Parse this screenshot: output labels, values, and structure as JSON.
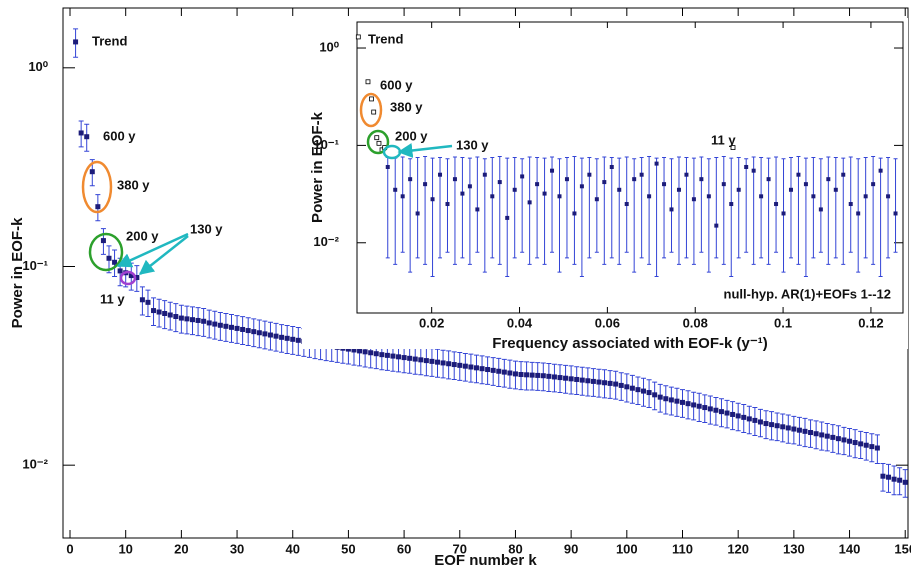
{
  "chart_data": [
    {
      "type": "errorbar",
      "x_label": "EOF number k",
      "y_label": "Power in EOF-k",
      "log_y": true,
      "color": "#1c1c7a",
      "error_color": "#3344d6",
      "xlim": [
        -1.26,
        150.5
      ],
      "xticks": [
        0,
        10,
        20,
        30,
        40,
        50,
        60,
        70,
        80,
        90,
        100,
        110,
        120,
        130,
        140,
        150
      ],
      "ylim": [
        0.0043,
        2
      ],
      "yticks": [
        {
          "value": 0.01,
          "label": "10⁻²"
        },
        {
          "value": 0.1,
          "label": "10⁻¹"
        },
        {
          "value": 1,
          "label": "10⁰"
        }
      ],
      "x": [
        1,
        2,
        3,
        4,
        5,
        6,
        7,
        8,
        9,
        10,
        11,
        12,
        13,
        14,
        15,
        16,
        17,
        18,
        19,
        20,
        21,
        22,
        23,
        24,
        25,
        26,
        27,
        28,
        29,
        30,
        31,
        32,
        33,
        34,
        35,
        36,
        37,
        38,
        39,
        40,
        41,
        42,
        43,
        44,
        45,
        46,
        47,
        48,
        49,
        50,
        51,
        52,
        53,
        54,
        55,
        56,
        57,
        58,
        59,
        60,
        61,
        62,
        63,
        64,
        65,
        66,
        67,
        68,
        69,
        70,
        71,
        72,
        73,
        74,
        75,
        76,
        77,
        78,
        79,
        80,
        81,
        82,
        83,
        84,
        85,
        86,
        87,
        88,
        89,
        90,
        91,
        92,
        93,
        94,
        95,
        96,
        97,
        98,
        99,
        100,
        101,
        102,
        103,
        104,
        105,
        106,
        107,
        108,
        109,
        110,
        111,
        112,
        113,
        114,
        115,
        116,
        117,
        118,
        119,
        120,
        121,
        122,
        123,
        124,
        125,
        126,
        127,
        128,
        129,
        130,
        131,
        132,
        133,
        134,
        135,
        136,
        137,
        138,
        139,
        140,
        141,
        142,
        143,
        144,
        145,
        146,
        147,
        148,
        149,
        150
      ],
      "values": [
        1.35,
        0.47,
        0.45,
        0.3,
        0.2,
        0.135,
        0.11,
        0.105,
        0.095,
        0.093,
        0.09,
        0.088,
        0.068,
        0.066,
        0.06,
        0.059,
        0.058,
        0.057,
        0.056,
        0.055,
        0.0545,
        0.054,
        0.0535,
        0.053,
        0.052,
        0.0513,
        0.0506,
        0.05,
        0.0494,
        0.0488,
        0.0482,
        0.0476,
        0.047,
        0.0464,
        0.0458,
        0.0452,
        0.0446,
        0.044,
        0.0435,
        0.043,
        0.0425,
        0.042,
        0.0415,
        0.041,
        0.0405,
        0.04,
        0.0396,
        0.0392,
        0.0388,
        0.0384,
        0.038,
        0.0376,
        0.0372,
        0.0368,
        0.0364,
        0.036,
        0.0357,
        0.0354,
        0.0351,
        0.0348,
        0.0345,
        0.0342,
        0.0339,
        0.0336,
        0.0333,
        0.033,
        0.0327,
        0.0324,
        0.0321,
        0.0318,
        0.0315,
        0.0312,
        0.0309,
        0.0306,
        0.0303,
        0.03,
        0.0297,
        0.0294,
        0.0291,
        0.0288,
        0.0286,
        0.0285,
        0.0284,
        0.0283,
        0.0282,
        0.028,
        0.0278,
        0.0276,
        0.0274,
        0.0272,
        0.027,
        0.0268,
        0.0266,
        0.0264,
        0.0262,
        0.026,
        0.0258,
        0.0256,
        0.0252,
        0.0248,
        0.0244,
        0.024,
        0.0236,
        0.0232,
        0.0226,
        0.022,
        0.0216,
        0.0213,
        0.021,
        0.0207,
        0.0204,
        0.0201,
        0.0198,
        0.0195,
        0.0192,
        0.0189,
        0.0186,
        0.0183,
        0.018,
        0.0177,
        0.0174,
        0.0171,
        0.0168,
        0.0165,
        0.0162,
        0.016,
        0.0158,
        0.0156,
        0.0154,
        0.0152,
        0.015,
        0.0148,
        0.0146,
        0.0144,
        0.0142,
        0.014,
        0.0138,
        0.0136,
        0.0134,
        0.0132,
        0.013,
        0.0128,
        0.0126,
        0.0124,
        0.0122,
        0.0088,
        0.0087,
        0.0085,
        0.0084,
        0.0082
      ],
      "errors": [
        0.22,
        0.07,
        0.07,
        0.045,
        0.03,
        0.02,
        0.017,
        0.016,
        0.015,
        0.014,
        0.014,
        0.013,
        0.011,
        0.01,
        0.0095,
        0.0094,
        0.0093,
        0.0091,
        0.009,
        0.0088,
        0.0087,
        0.0086,
        0.0086,
        0.0085,
        0.0083,
        0.0082,
        0.0081,
        0.008,
        0.0079,
        0.0078,
        0.0077,
        0.0076,
        0.0075,
        0.0074,
        0.0073,
        0.0072,
        0.0071,
        0.007,
        0.007,
        0.0069,
        0.0068,
        0.0067,
        0.0066,
        0.0066,
        0.0065,
        0.0064,
        0.0063,
        0.0063,
        0.0062,
        0.0061,
        0.0061,
        0.006,
        0.006,
        0.0059,
        0.0058,
        0.0058,
        0.0057,
        0.0057,
        0.0056,
        0.0056,
        0.0055,
        0.0055,
        0.0054,
        0.0054,
        0.0053,
        0.0053,
        0.0052,
        0.0052,
        0.0051,
        0.0051,
        0.005,
        0.005,
        0.0049,
        0.0049,
        0.0048,
        0.0048,
        0.0048,
        0.0047,
        0.0047,
        0.0046,
        0.0046,
        0.0046,
        0.0045,
        0.0045,
        0.0045,
        0.0045,
        0.0044,
        0.0044,
        0.0044,
        0.0044,
        0.0043,
        0.0043,
        0.0043,
        0.0042,
        0.0042,
        0.0042,
        0.0041,
        0.0041,
        0.004,
        0.004,
        0.0039,
        0.0038,
        0.0038,
        0.0037,
        0.0036,
        0.0035,
        0.0035,
        0.0034,
        0.0034,
        0.0033,
        0.0033,
        0.0032,
        0.0032,
        0.0031,
        0.0031,
        0.003,
        0.003,
        0.0029,
        0.0029,
        0.0028,
        0.0028,
        0.0027,
        0.0027,
        0.0026,
        0.0026,
        0.0026,
        0.0025,
        0.0025,
        0.0025,
        0.0024,
        0.0024,
        0.0024,
        0.0023,
        0.0023,
        0.0023,
        0.0022,
        0.0022,
        0.0022,
        0.0021,
        0.0021,
        0.0021,
        0.002,
        0.002,
        0.002,
        0.002,
        0.0014,
        0.0014,
        0.0014,
        0.0013,
        0.0013
      ],
      "annotations": [
        {
          "text": "Trend",
          "color": "#a8322a"
        },
        {
          "text": "600 y",
          "color": "#e8262a"
        },
        {
          "text": "380 y",
          "color": "#f08a30"
        },
        {
          "text": "200 y",
          "color": "#2ca02c"
        },
        {
          "text": "130 y",
          "color": "#20b8c0"
        },
        {
          "text": "11 y",
          "color": "#a040d0"
        }
      ]
    },
    {
      "type": "scatter",
      "x_label": "Frequency associated with EOF-k (y⁻¹)",
      "y_label": "Power in EOF-k",
      "note": "null-hyp. AR(1)+EOFs 1--12",
      "log_y": true,
      "color": "#1c1c7a",
      "error_color": "#3344d6",
      "xlim": [
        0.003,
        0.1273
      ],
      "xticks": [
        0.02,
        0.04,
        0.06,
        0.08,
        0.1,
        0.12
      ],
      "ylim": [
        0.0019,
        1.85
      ],
      "yticks": [
        {
          "value": 0.01,
          "label": "10⁻²"
        },
        {
          "value": 0.1,
          "label": "10⁻¹"
        },
        {
          "value": 1,
          "label": "10⁰"
        }
      ],
      "x": [
        0.0033,
        0.0055,
        0.0063,
        0.0068,
        0.0075,
        0.008,
        0.0087,
        0.0093,
        0.01,
        0.0117,
        0.0134,
        0.0151,
        0.0168,
        0.0185,
        0.0202,
        0.0219,
        0.0236,
        0.0253,
        0.027,
        0.0287,
        0.0304,
        0.0321,
        0.0338,
        0.0355,
        0.0372,
        0.0389,
        0.0406,
        0.0423,
        0.044,
        0.0457,
        0.0474,
        0.0491,
        0.0508,
        0.0525,
        0.0542,
        0.0559,
        0.0576,
        0.0593,
        0.061,
        0.0627,
        0.0644,
        0.0661,
        0.0678,
        0.0695,
        0.0712,
        0.0729,
        0.0746,
        0.0763,
        0.078,
        0.0797,
        0.0814,
        0.0831,
        0.0848,
        0.0865,
        0.0882,
        0.0899,
        0.0916,
        0.0933,
        0.095,
        0.0967,
        0.0984,
        0.1001,
        0.1018,
        0.1035,
        0.1052,
        0.1069,
        0.1086,
        0.1103,
        0.112,
        0.1137,
        0.1154,
        0.1171,
        0.1188,
        0.1205,
        0.1222,
        0.1239,
        0.1256,
        0.0886
      ],
      "values": [
        1.3,
        0.45,
        0.3,
        0.22,
        0.12,
        0.105,
        0.09,
        0.095,
        0.06,
        0.035,
        0.03,
        0.045,
        0.02,
        0.04,
        0.028,
        0.05,
        0.025,
        0.045,
        0.032,
        0.038,
        0.022,
        0.05,
        0.03,
        0.042,
        0.018,
        0.035,
        0.048,
        0.026,
        0.04,
        0.032,
        0.055,
        0.03,
        0.045,
        0.02,
        0.038,
        0.05,
        0.028,
        0.042,
        0.06,
        0.035,
        0.025,
        0.045,
        0.05,
        0.03,
        0.065,
        0.04,
        0.022,
        0.035,
        0.05,
        0.028,
        0.045,
        0.03,
        0.015,
        0.04,
        0.025,
        0.035,
        0.06,
        0.055,
        0.03,
        0.045,
        0.025,
        0.02,
        0.035,
        0.05,
        0.04,
        0.03,
        0.022,
        0.045,
        0.035,
        0.05,
        0.025,
        0.02,
        0.03,
        0.04,
        0.055,
        0.03,
        0.02,
        0.095
      ],
      "null_low": [
        null,
        null,
        null,
        null,
        null,
        null,
        null,
        null,
        0.007,
        0.006,
        0.008,
        0.005,
        0.007,
        0.006,
        0.0045,
        0.007,
        0.008,
        0.006,
        0.007,
        0.006,
        0.008,
        0.005,
        0.007,
        0.006,
        0.0045,
        0.007,
        0.008,
        0.006,
        0.007,
        0.006,
        0.008,
        0.005,
        0.007,
        0.006,
        0.0045,
        0.007,
        0.008,
        0.006,
        0.007,
        0.006,
        0.008,
        0.005,
        0.007,
        0.006,
        0.0045,
        0.007,
        0.008,
        0.006,
        0.007,
        0.006,
        0.008,
        0.005,
        0.007,
        0.006,
        0.0045,
        0.007,
        0.008,
        0.006,
        0.007,
        0.006,
        0.008,
        0.005,
        0.007,
        0.006,
        0.0045,
        0.007,
        0.008,
        0.006,
        0.007,
        0.006,
        0.008,
        0.005,
        0.007,
        0.006,
        0.0045,
        0.007,
        0.008,
        null
      ],
      "null_high": [
        null,
        null,
        null,
        null,
        null,
        null,
        null,
        null,
        0.075,
        0.074,
        0.076,
        0.073,
        0.075,
        0.077,
        0.074,
        0.075,
        0.073,
        0.076,
        0.075,
        0.074,
        0.076,
        0.073,
        0.075,
        0.077,
        0.074,
        0.075,
        0.073,
        0.076,
        0.075,
        0.074,
        0.076,
        0.073,
        0.075,
        0.077,
        0.074,
        0.075,
        0.073,
        0.076,
        0.075,
        0.074,
        0.076,
        0.073,
        0.075,
        0.077,
        0.074,
        0.075,
        0.073,
        0.076,
        0.075,
        0.074,
        0.076,
        0.073,
        0.075,
        0.077,
        0.074,
        0.075,
        0.073,
        0.076,
        0.075,
        0.074,
        0.076,
        0.073,
        0.075,
        0.077,
        0.074,
        0.075,
        0.073,
        0.076,
        0.075,
        0.074,
        0.076,
        0.073,
        0.075,
        0.077,
        0.074,
        0.075,
        0.073,
        null
      ],
      "annotations": [
        {
          "text": "Trend",
          "color": "#a8322a"
        },
        {
          "text": "600 y",
          "color": "#e8262a"
        },
        {
          "text": "380 y",
          "color": "#f08a30"
        },
        {
          "text": "200 y",
          "color": "#2ca02c"
        },
        {
          "text": "130 y",
          "color": "#20b8c0"
        },
        {
          "text": "11 y",
          "color": "#a040d0"
        }
      ]
    }
  ]
}
